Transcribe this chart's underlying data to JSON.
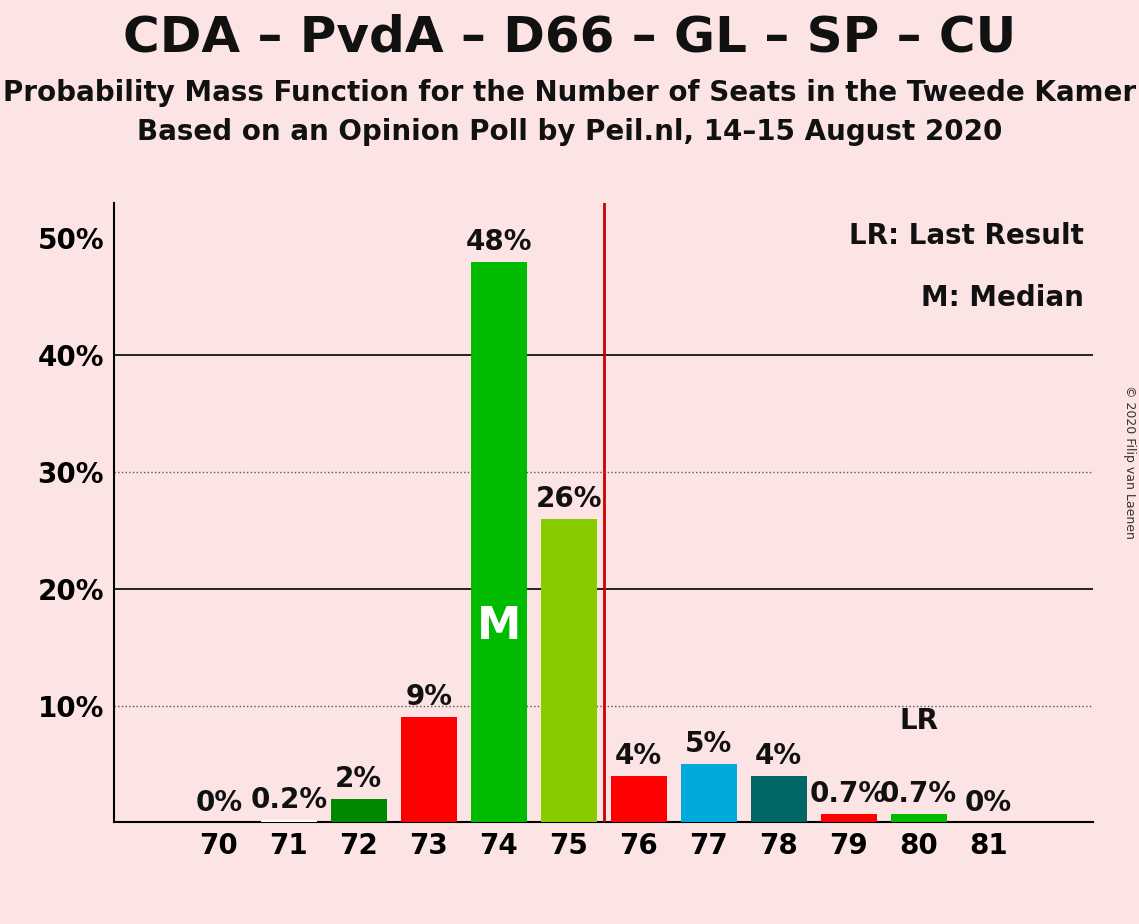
{
  "title": "CDA – PvdA – D66 – GL – SP – CU",
  "subtitle1": "Probability Mass Function for the Number of Seats in the Tweede Kamer",
  "subtitle2": "Based on an Opinion Poll by Peil.nl, 14–15 August 2020",
  "copyright": "© 2020 Filip van Laenen",
  "background_color": "#fce4e4",
  "seats": [
    70,
    71,
    72,
    73,
    74,
    75,
    76,
    77,
    78,
    79,
    80,
    81
  ],
  "probabilities": [
    0.0,
    0.2,
    2.0,
    9.0,
    48.0,
    26.0,
    4.0,
    5.0,
    4.0,
    0.7,
    0.7,
    0.0
  ],
  "bar_colors": [
    "#ff0000",
    "#ffffff",
    "#008800",
    "#ff0000",
    "#00bb00",
    "#88cc00",
    "#ff0000",
    "#00aadd",
    "#006666",
    "#ff0000",
    "#00bb00",
    "#ff0000"
  ],
  "median_seat": 74,
  "last_result_seat": 75.5,
  "median_label": "M",
  "median_label_color": "#ffffff",
  "vline_color": "#cc0000",
  "yticks": [
    0,
    10,
    20,
    30,
    40,
    50
  ],
  "ytick_labels": [
    "",
    "10%",
    "20%",
    "30%",
    "40%",
    "50%"
  ],
  "dotted_gridlines": [
    10,
    30
  ],
  "solid_gridlines": [
    20,
    40
  ],
  "lr_annotation_seat": 80,
  "lr_annotation_text": "LR",
  "title_fontsize": 36,
  "subtitle_fontsize": 20,
  "bar_label_fontsize": 20,
  "tick_fontsize": 20,
  "legend_fontsize": 20,
  "median_label_fontsize": 32
}
